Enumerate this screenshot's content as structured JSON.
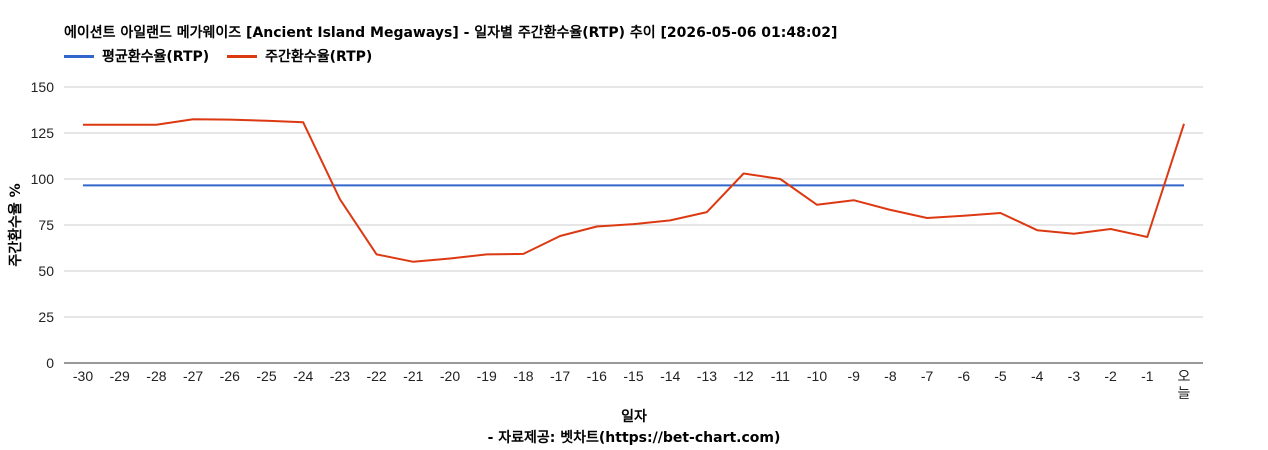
{
  "title": "에이션트 아일랜드 메가웨이즈 [Ancient Island Megaways] - 일자별 주간환수율(RTP) 추이 [2026-05-06 01:48:02]",
  "footer": "- 자료제공: 벳차트(https://bet-chart.com)",
  "colors": {
    "avg": "#3366cc",
    "weekly": "#dc3912",
    "grid": "#cccccc"
  },
  "chart_data": {
    "type": "line",
    "xlabel": "일자",
    "ylabel": "주간환수율 %",
    "ylim": [
      0,
      150
    ],
    "yticks": [
      0,
      25,
      50,
      75,
      100,
      125,
      150
    ],
    "grid": true,
    "legend_position": "top-left",
    "categories": [
      "-30",
      "-29",
      "-28",
      "-27",
      "-26",
      "-25",
      "-24",
      "-23",
      "-22",
      "-21",
      "-20",
      "-19",
      "-18",
      "-17",
      "-16",
      "-15",
      "-14",
      "-13",
      "-12",
      "-11",
      "-10",
      "-9",
      "-8",
      "-7",
      "-6",
      "-5",
      "-4",
      "-3",
      "-2",
      "-1",
      "오늘"
    ],
    "series": [
      {
        "name": "평균환수율(RTP)",
        "values": [
          96.5,
          96.5,
          96.5,
          96.5,
          96.5,
          96.5,
          96.5,
          96.5,
          96.5,
          96.5,
          96.5,
          96.5,
          96.5,
          96.5,
          96.5,
          96.5,
          96.5,
          96.5,
          96.5,
          96.5,
          96.5,
          96.5,
          96.5,
          96.5,
          96.5,
          96.5,
          96.5,
          96.5,
          96.5,
          96.5,
          96.5
        ]
      },
      {
        "name": "주간환수율(RTP)",
        "values": [
          129.5,
          129.5,
          129.5,
          132.5,
          132.3,
          131.7,
          130.8,
          89,
          59,
          55,
          56.8,
          59,
          59.3,
          69,
          74.2,
          75.5,
          77.5,
          82,
          103,
          100,
          86,
          88.5,
          83.2,
          78.8,
          80,
          81.5,
          72.2,
          70.2,
          72.8,
          68.5,
          130
        ]
      }
    ]
  }
}
